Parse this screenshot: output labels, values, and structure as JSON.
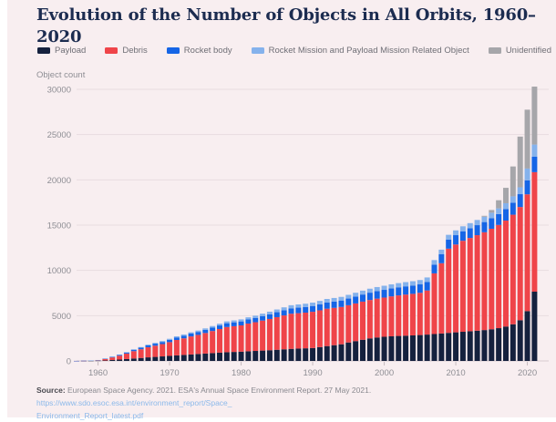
{
  "header": {
    "title": "Evolution of the Number of Objects in All Orbits, 1960–2020"
  },
  "source": {
    "label": "Source:",
    "text": " European Space Agency. 2021. ESA's Annual Space Environment Report. 27 May 2021. ",
    "link_line1": "https://www.sdo.esoc.esa.int/environment_report/Space_",
    "link_line2": "Environment_Report_latest.pdf"
  },
  "palette": {
    "background": "#f8eef0",
    "title_text": "#1c2c50",
    "axis_text": "#8e8e94",
    "gridline": "#e9dce0",
    "zero_line": "#d8cccf",
    "tick_mark": "#c5babd",
    "legend_text": "#6f6f76",
    "link": "#8cb9ea",
    "source_text": "#8a8a90"
  },
  "chart_data": {
    "type": "bar",
    "stacked": true,
    "title": "Evolution of the Number of Objects in All Orbits, 1960–2020",
    "ylabel": "Object count",
    "xlabel": "",
    "start_year": 1957,
    "end_year": 2021,
    "ylim": [
      0,
      30000
    ],
    "y_ticks": [
      0,
      5000,
      10000,
      15000,
      20000,
      25000,
      30000
    ],
    "x_ticks": [
      1960,
      1970,
      1980,
      1990,
      2000,
      2010,
      2020
    ],
    "grid": "horizontal",
    "legend_position": "top",
    "series": [
      {
        "name": "Payload",
        "color": "#15213e",
        "values": [
          2,
          6,
          14,
          26,
          55,
          100,
          150,
          205,
          270,
          330,
          395,
          445,
          500,
          555,
          615,
          665,
          715,
          765,
          815,
          865,
          915,
          965,
          995,
          1025,
          1065,
          1105,
          1145,
          1185,
          1235,
          1285,
          1335,
          1365,
          1395,
          1430,
          1530,
          1640,
          1740,
          1840,
          2040,
          2190,
          2340,
          2490,
          2590,
          2670,
          2720,
          2760,
          2790,
          2820,
          2860,
          2910,
          2970,
          3030,
          3100,
          3160,
          3220,
          3280,
          3340,
          3410,
          3500,
          3620,
          3800,
          4050,
          4500,
          5500,
          7650
        ]
      },
      {
        "name": "Debris",
        "color": "#ef4449",
        "values": [
          1,
          12,
          26,
          56,
          165,
          290,
          430,
          610,
          810,
          960,
          1120,
          1240,
          1360,
          1520,
          1700,
          1830,
          1990,
          2110,
          2270,
          2440,
          2610,
          2780,
          2840,
          2900,
          3060,
          3170,
          3310,
          3450,
          3600,
          3740,
          3880,
          3910,
          3940,
          4000,
          4060,
          4130,
          4120,
          4120,
          4110,
          4160,
          4210,
          4240,
          4290,
          4330,
          4410,
          4480,
          4540,
          4590,
          4660,
          4870,
          6700,
          7760,
          9300,
          9700,
          10050,
          10300,
          10550,
          10800,
          11100,
          11400,
          11700,
          12100,
          12500,
          12900,
          13200
        ]
      },
      {
        "name": "Rocket body",
        "color": "#1565e6",
        "values": [
          1,
          4,
          8,
          16,
          38,
          65,
          90,
          115,
          150,
          175,
          205,
          220,
          235,
          255,
          280,
          295,
          315,
          330,
          350,
          375,
          395,
          420,
          430,
          440,
          460,
          480,
          500,
          520,
          545,
          570,
          595,
          610,
          625,
          640,
          660,
          685,
          700,
          715,
          740,
          760,
          785,
          810,
          830,
          850,
          870,
          890,
          905,
          920,
          935,
          950,
          970,
          990,
          1010,
          1030,
          1055,
          1080,
          1105,
          1130,
          1160,
          1200,
          1260,
          1330,
          1420,
          1550,
          1700
        ]
      },
      {
        "name": "Rocket Mission and Payload Mission Related Object",
        "color": "#85b2ec",
        "values": [
          0,
          0,
          2,
          4,
          10,
          20,
          30,
          45,
          60,
          70,
          85,
          95,
          105,
          115,
          125,
          135,
          145,
          150,
          160,
          175,
          190,
          205,
          215,
          225,
          235,
          245,
          265,
          285,
          305,
          325,
          345,
          355,
          360,
          370,
          380,
          390,
          395,
          400,
          410,
          420,
          430,
          440,
          450,
          455,
          460,
          465,
          470,
          475,
          480,
          490,
          500,
          510,
          520,
          530,
          545,
          560,
          575,
          590,
          610,
          630,
          660,
          700,
          760,
          1300,
          1350
        ]
      },
      {
        "name": "Unidentified",
        "color": "#a6a6aa",
        "values": [
          0,
          0,
          0,
          0,
          0,
          0,
          0,
          0,
          0,
          0,
          0,
          0,
          0,
          0,
          0,
          0,
          0,
          0,
          0,
          0,
          0,
          0,
          0,
          0,
          0,
          0,
          0,
          0,
          0,
          0,
          0,
          0,
          0,
          0,
          0,
          0,
          0,
          0,
          0,
          0,
          0,
          0,
          0,
          0,
          0,
          0,
          0,
          0,
          0,
          0,
          0,
          0,
          0,
          0,
          0,
          0,
          0,
          100,
          300,
          900,
          1700,
          3300,
          5600,
          6500,
          6400
        ]
      }
    ]
  }
}
